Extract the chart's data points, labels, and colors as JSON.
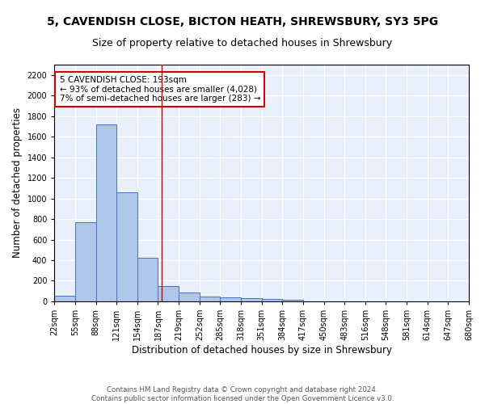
{
  "title_line1": "5, CAVENDISH CLOSE, BICTON HEATH, SHREWSBURY, SY3 5PG",
  "title_line2": "Size of property relative to detached houses in Shrewsbury",
  "xlabel": "Distribution of detached houses by size in Shrewsbury",
  "ylabel": "Number of detached properties",
  "bar_edges": [
    22,
    55,
    88,
    121,
    154,
    187,
    220,
    253,
    286,
    319,
    352,
    385,
    418,
    451,
    484,
    517,
    550,
    583,
    616,
    649,
    682
  ],
  "bar_values": [
    55,
    770,
    1720,
    1060,
    420,
    150,
    85,
    45,
    38,
    32,
    20,
    18,
    0,
    0,
    0,
    0,
    0,
    0,
    0,
    0
  ],
  "tick_labels": [
    "22sqm",
    "55sqm",
    "88sqm",
    "121sqm",
    "154sqm",
    "187sqm",
    "219sqm",
    "252sqm",
    "285sqm",
    "318sqm",
    "351sqm",
    "384sqm",
    "417sqm",
    "450sqm",
    "483sqm",
    "516sqm",
    "548sqm",
    "581sqm",
    "614sqm",
    "647sqm",
    "680sqm"
  ],
  "bar_color": "#aec6e8",
  "bar_edge_color": "#4472c4",
  "bg_color": "#eaf0fb",
  "grid_color": "#ffffff",
  "vline_x": 193,
  "vline_color": "#cc0000",
  "annotation_text": "5 CAVENDISH CLOSE: 193sqm\n← 93% of detached houses are smaller (4,028)\n7% of semi-detached houses are larger (283) →",
  "annotation_box_color": "#ffffff",
  "annotation_box_edge": "#cc0000",
  "ylim": [
    0,
    2300
  ],
  "yticks": [
    0,
    200,
    400,
    600,
    800,
    1000,
    1200,
    1400,
    1600,
    1800,
    2000,
    2200
  ],
  "footnote": "Contains HM Land Registry data © Crown copyright and database right 2024.\nContains public sector information licensed under the Open Government Licence v3.0.",
  "title_fontsize": 10,
  "subtitle_fontsize": 9,
  "axis_label_fontsize": 8.5,
  "tick_fontsize": 7
}
